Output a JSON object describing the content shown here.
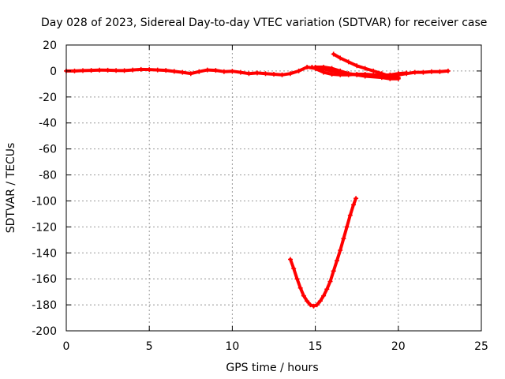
{
  "chart_data": {
    "type": "scatter",
    "title": "Day 028 of 2023, Sidereal Day-to-day VTEC variation (SDTVAR) for receiver case",
    "xlabel": "GPS time / hours",
    "ylabel": "SDTVAR / TECUs",
    "xlim": [
      0,
      25
    ],
    "ylim": [
      -200,
      20
    ],
    "xticks": [
      0,
      5,
      10,
      15,
      20,
      25
    ],
    "yticks": [
      20,
      0,
      -20,
      -40,
      -60,
      -80,
      -100,
      -120,
      -140,
      -160,
      -180,
      -200
    ],
    "grid": true,
    "series": [
      {
        "name": "SDTVAR",
        "color": "#ff0000",
        "segments": [
          [
            [
              0,
              0
            ],
            [
              0.5,
              0
            ],
            [
              1,
              0.3
            ],
            [
              1.5,
              0.5
            ],
            [
              2,
              0.7
            ],
            [
              2.5,
              0.6
            ],
            [
              3,
              0.4
            ],
            [
              3.5,
              0.3
            ],
            [
              4,
              0.8
            ],
            [
              4.5,
              1.2
            ],
            [
              5,
              1.1
            ],
            [
              5.5,
              0.8
            ],
            [
              6,
              0.5
            ],
            [
              6.5,
              -0.3
            ],
            [
              7,
              -1
            ],
            [
              7.5,
              -2
            ],
            [
              8,
              -0.5
            ],
            [
              8.5,
              0.8
            ],
            [
              9,
              0.5
            ],
            [
              9.5,
              -0.5
            ],
            [
              10,
              -0.2
            ],
            [
              10.5,
              -1
            ],
            [
              11,
              -2
            ],
            [
              11.5,
              -1.5
            ],
            [
              12,
              -2
            ],
            [
              12.5,
              -2.5
            ],
            [
              13,
              -3
            ],
            [
              13.5,
              -2
            ],
            [
              14,
              0
            ],
            [
              14.5,
              3
            ],
            [
              15,
              2
            ],
            [
              15.5,
              1.5
            ],
            [
              16,
              0
            ],
            [
              16.5,
              -1
            ],
            [
              17,
              -2
            ],
            [
              17.5,
              -3
            ],
            [
              18,
              -3
            ],
            [
              18.5,
              -3.5
            ],
            [
              19,
              -4
            ],
            [
              19.5,
              -5
            ],
            [
              20,
              -3
            ],
            [
              20.5,
              -2
            ],
            [
              21,
              -1
            ],
            [
              21.5,
              -1
            ],
            [
              22,
              -0.5
            ],
            [
              22.5,
              -0.5
            ],
            [
              23,
              0
            ]
          ],
          [
            [
              14.8,
              3
            ],
            [
              15.5,
              -1
            ],
            [
              16,
              -2.5
            ],
            [
              16.5,
              -3
            ],
            [
              17,
              -3
            ],
            [
              17.5,
              -2.5
            ],
            [
              18,
              -2.5
            ],
            [
              18.5,
              -3
            ],
            [
              19,
              -3.5
            ],
            [
              19.5,
              -3
            ],
            [
              20,
              -2
            ],
            [
              20.5,
              -1.5
            ]
          ],
          [
            [
              15,
              3
            ],
            [
              15.5,
              3
            ],
            [
              16,
              2
            ],
            [
              16.5,
              0
            ],
            [
              17,
              -2
            ],
            [
              18,
              -4
            ],
            [
              19,
              -5
            ],
            [
              19.5,
              -6
            ],
            [
              20,
              -6
            ]
          ],
          [
            [
              16.1,
              13
            ],
            [
              16.5,
              10
            ],
            [
              17,
              7
            ],
            [
              17.5,
              4
            ],
            [
              18,
              2
            ],
            [
              18.5,
              0
            ],
            [
              19,
              -2
            ],
            [
              19.5,
              -4
            ],
            [
              20,
              -5
            ]
          ],
          [
            [
              13.5,
              -145
            ],
            [
              13.7,
              -152
            ],
            [
              13.9,
              -160
            ],
            [
              14.1,
              -167
            ],
            [
              14.3,
              -173
            ],
            [
              14.5,
              -177
            ],
            [
              14.7,
              -180
            ],
            [
              14.9,
              -181
            ],
            [
              15.1,
              -180
            ],
            [
              15.3,
              -177
            ],
            [
              15.5,
              -173
            ],
            [
              15.7,
              -168
            ],
            [
              15.9,
              -162
            ],
            [
              16.1,
              -154
            ],
            [
              16.3,
              -146
            ],
            [
              16.5,
              -138
            ],
            [
              16.7,
              -129
            ],
            [
              16.9,
              -120
            ],
            [
              17.1,
              -111
            ],
            [
              17.3,
              -103
            ],
            [
              17.45,
              -98
            ]
          ]
        ]
      }
    ]
  }
}
